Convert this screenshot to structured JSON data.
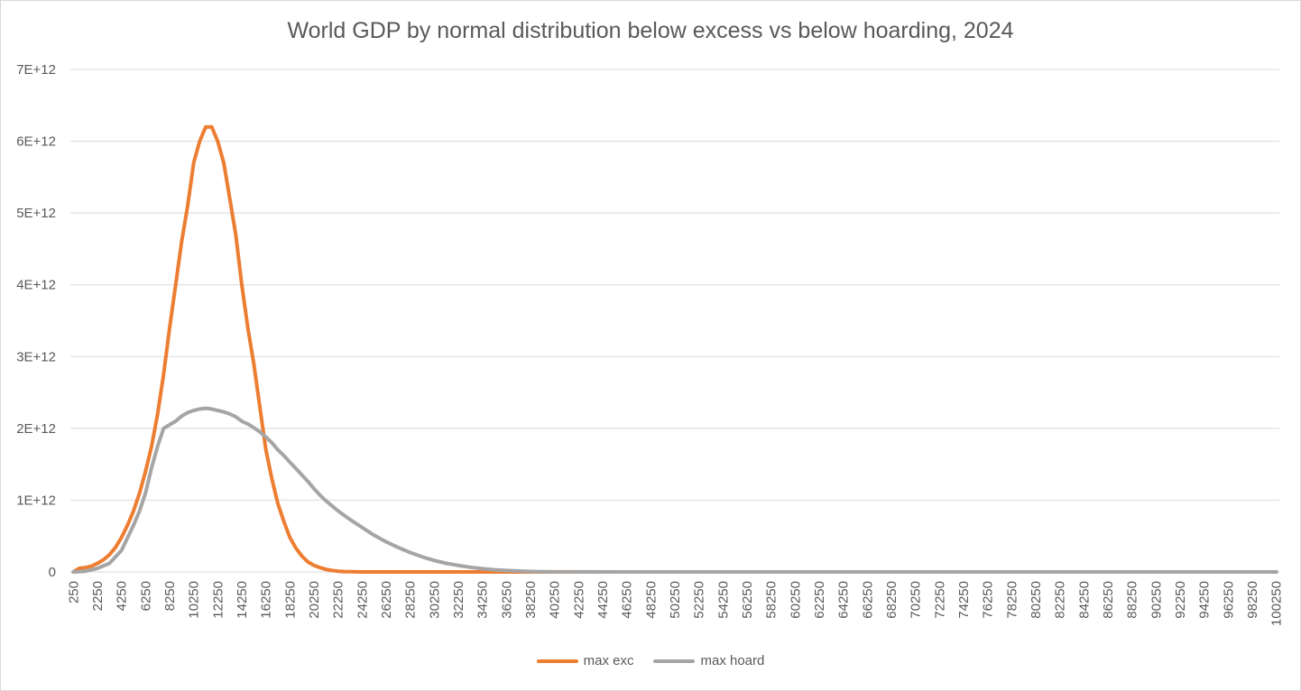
{
  "chart_data": {
    "type": "line",
    "title": "World GDP by normal distribution below excess vs below hoarding, 2024",
    "xlabel": "",
    "ylabel": "",
    "x_start": 250,
    "x_step": 500,
    "x_count": 201,
    "x_tick_labels": [
      "250",
      "2250",
      "4250",
      "6250",
      "8250",
      "10250",
      "12250",
      "14250",
      "16250",
      "18250",
      "20250",
      "22250",
      "24250",
      "26250",
      "28250",
      "30250",
      "32250",
      "34250",
      "36250",
      "38250",
      "40250",
      "42250",
      "44250",
      "46250",
      "48250",
      "50250",
      "52250",
      "54250",
      "56250",
      "58250",
      "60250",
      "62250",
      "64250",
      "66250",
      "68250",
      "70250",
      "72250",
      "74250",
      "76250",
      "78250",
      "80250",
      "82250",
      "84250",
      "86250",
      "88250",
      "90250",
      "92250",
      "94250",
      "96250",
      "98250",
      "100250"
    ],
    "y_tick_labels": [
      "0",
      "1E+12",
      "2E+12",
      "3E+12",
      "4E+12",
      "5E+12",
      "6E+12",
      "7E+12"
    ],
    "ylim": [
      0,
      7000000000000
    ],
    "grid": true,
    "legend_position": "bottom",
    "series": [
      {
        "name": "max exc",
        "color": "#ed7d31",
        "x": [
          250,
          750,
          1250,
          1750,
          2250,
          2750,
          3250,
          3750,
          4250,
          4750,
          5250,
          5750,
          6250,
          6750,
          7250,
          7750,
          8250,
          8750,
          9250,
          9750,
          10250,
          10750,
          11250,
          11750,
          12250,
          12750,
          13250,
          13750,
          14250,
          14750,
          15250,
          15750,
          16250,
          16750,
          17250,
          17750,
          18250,
          18750,
          19250,
          19750,
          20250,
          20750,
          21250,
          21750,
          22250,
          22750,
          23250,
          23750,
          24250,
          30250,
          40250,
          60250,
          80250,
          100250
        ],
        "y": [
          0,
          50000000000,
          60000000000,
          80000000000,
          120000000000,
          170000000000,
          240000000000,
          340000000000,
          480000000000,
          650000000000,
          850000000000,
          1100000000000,
          1400000000000,
          1750000000000,
          2200000000000,
          2750000000000,
          3400000000000,
          4000000000000,
          4600000000000,
          5100000000000,
          5700000000000,
          6000000000000,
          6200000000000,
          6200000000000,
          6000000000000,
          5700000000000,
          5200000000000,
          4700000000000,
          4000000000000,
          3400000000000,
          2900000000000,
          2300000000000,
          1700000000000,
          1300000000000,
          950000000000,
          700000000000,
          480000000000,
          330000000000,
          220000000000,
          140000000000,
          90000000000,
          60000000000,
          35000000000,
          20000000000,
          10000000000,
          5000000000,
          2000000000,
          1000000000,
          0,
          0,
          0,
          0,
          0,
          0
        ]
      },
      {
        "name": "max hoard",
        "color": "#a5a5a5",
        "x": [
          250,
          1250,
          2250,
          3250,
          4250,
          5250,
          5750,
          6250,
          6750,
          7250,
          7750,
          8250,
          8750,
          9250,
          9750,
          10250,
          10750,
          11250,
          11750,
          12250,
          12750,
          13250,
          13750,
          14250,
          14750,
          15250,
          15750,
          16250,
          16750,
          17250,
          17750,
          18250,
          18750,
          19250,
          19750,
          20250,
          20750,
          21250,
          21750,
          22250,
          23250,
          24250,
          25250,
          26250,
          27250,
          28250,
          29250,
          30250,
          31250,
          32250,
          33250,
          34250,
          35250,
          36250,
          37250,
          38250,
          39250,
          40250,
          45250,
          50250,
          60250,
          70250,
          80250,
          90250,
          100250
        ],
        "y": [
          0,
          10000000000,
          50000000000,
          120000000000,
          300000000000,
          650000000000,
          850000000000,
          1100000000000,
          1450000000000,
          1750000000000,
          2000000000000,
          2050000000000,
          2100000000000,
          2170000000000,
          2220000000000,
          2250000000000,
          2270000000000,
          2280000000000,
          2270000000000,
          2250000000000,
          2230000000000,
          2200000000000,
          2160000000000,
          2100000000000,
          2060000000000,
          2010000000000,
          1950000000000,
          1880000000000,
          1800000000000,
          1700000000000,
          1620000000000,
          1530000000000,
          1440000000000,
          1350000000000,
          1260000000000,
          1160000000000,
          1070000000000,
          990000000000,
          920000000000,
          850000000000,
          730000000000,
          620000000000,
          510000000000,
          420000000000,
          340000000000,
          270000000000,
          210000000000,
          160000000000,
          120000000000,
          90000000000,
          65000000000,
          45000000000,
          30000000000,
          20000000000,
          12000000000,
          6000000000,
          3000000000,
          1000000000,
          0,
          0,
          0,
          0,
          0,
          0,
          0
        ]
      }
    ]
  }
}
